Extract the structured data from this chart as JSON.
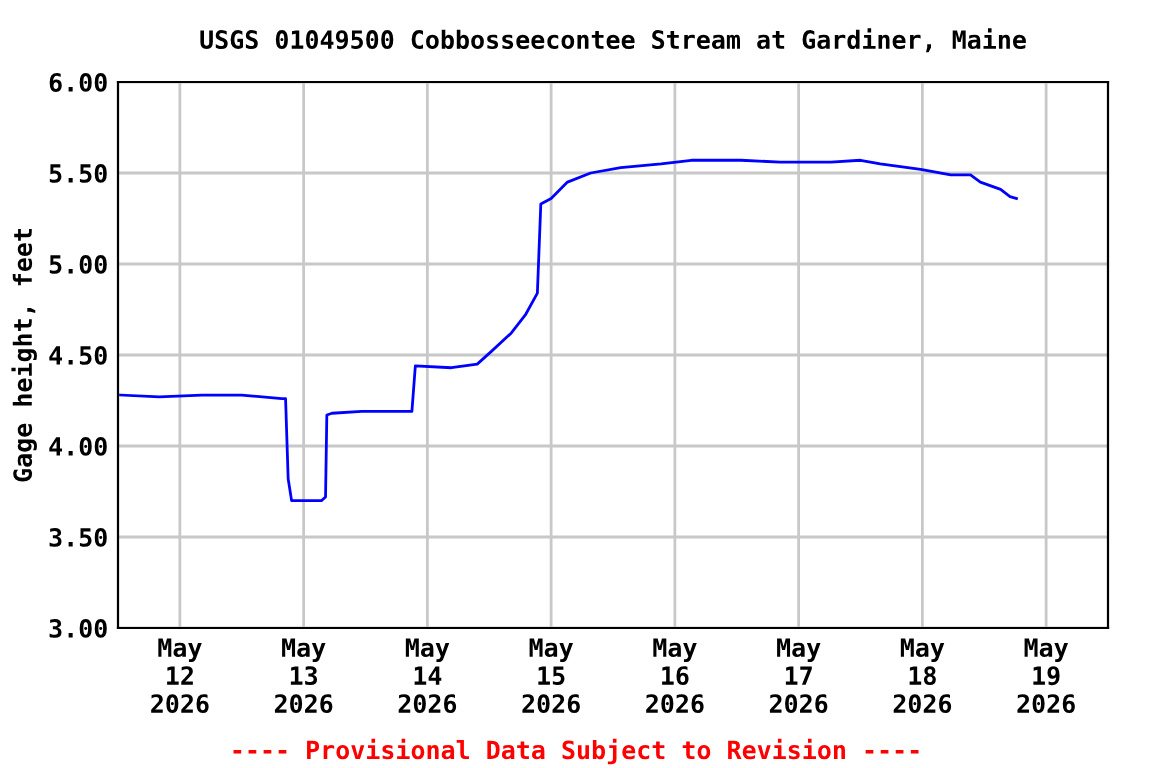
{
  "chart_data": {
    "type": "line",
    "title": "USGS 01049500 Cobbosseecontee Stream at Gardiner, Maine",
    "ylabel": "Gage height, feet",
    "x": [
      "2026-05-11T12:30",
      "2026-05-11T20:00",
      "2026-05-12T04:15",
      "2026-05-12T12:00",
      "2026-05-12T19:45",
      "2026-05-12T20:30",
      "2026-05-12T21:00",
      "2026-05-12T21:40",
      "2026-05-13T03:30",
      "2026-05-13T04:15",
      "2026-05-13T04:30",
      "2026-05-13T05:30",
      "2026-05-13T11:15",
      "2026-05-13T21:00",
      "2026-05-13T21:40",
      "2026-05-14T04:40",
      "2026-05-14T09:40",
      "2026-05-14T12:25",
      "2026-05-14T16:15",
      "2026-05-14T19:00",
      "2026-05-14T21:20",
      "2026-05-14T22:00",
      "2026-05-15T00:00",
      "2026-05-15T03:10",
      "2026-05-15T07:40",
      "2026-05-15T13:30",
      "2026-05-15T21:20",
      "2026-05-16T03:10",
      "2026-05-16T12:50",
      "2026-05-16T20:25",
      "2026-05-17T06:15",
      "2026-05-17T12:00",
      "2026-05-17T15:50",
      "2026-05-17T23:40",
      "2026-05-18T05:30",
      "2026-05-18T09:20",
      "2026-05-18T11:15",
      "2026-05-18T15:10",
      "2026-05-18T17:00",
      "2026-05-18T18:15"
    ],
    "series": [
      {
        "color": "#0000ff",
        "values": [
          4.28,
          4.27,
          4.28,
          4.28,
          4.26,
          4.26,
          3.82,
          3.7,
          3.7,
          3.72,
          4.17,
          4.18,
          4.19,
          4.19,
          4.44,
          4.43,
          4.45,
          4.52,
          4.62,
          4.72,
          4.84,
          5.33,
          5.36,
          5.45,
          5.5,
          5.53,
          5.55,
          5.57,
          5.57,
          5.56,
          5.56,
          5.57,
          5.55,
          5.52,
          5.49,
          5.49,
          5.45,
          5.41,
          5.37,
          5.36
        ]
      }
    ],
    "xlim": [
      "2026-05-11T12:00",
      "2026-05-19T12:00"
    ],
    "xticks": [
      {
        "value": "2026-05-12",
        "label": "May\n12\n2026"
      },
      {
        "value": "2026-05-13",
        "label": "May\n13\n2026"
      },
      {
        "value": "2026-05-14",
        "label": "May\n14\n2026"
      },
      {
        "value": "2026-05-15",
        "label": "May\n15\n2026"
      },
      {
        "value": "2026-05-16",
        "label": "May\n16\n2026"
      },
      {
        "value": "2026-05-17",
        "label": "May\n17\n2026"
      },
      {
        "value": "2026-05-18",
        "label": "May\n18\n2026"
      },
      {
        "value": "2026-05-19",
        "label": "May\n19\n2026"
      }
    ],
    "ylim": [
      3.0,
      6.0
    ],
    "yticks": [
      {
        "value": 3.0,
        "label": "3.00"
      },
      {
        "value": 3.5,
        "label": "3.50"
      },
      {
        "value": 4.0,
        "label": "4.00"
      },
      {
        "value": 4.5,
        "label": "4.50"
      },
      {
        "value": 5.0,
        "label": "5.00"
      },
      {
        "value": 5.5,
        "label": "5.50"
      },
      {
        "value": 6.0,
        "label": "6.00"
      }
    ],
    "grid": true,
    "annotations": [
      "---- Provisional Data Subject to Revision ----"
    ]
  }
}
